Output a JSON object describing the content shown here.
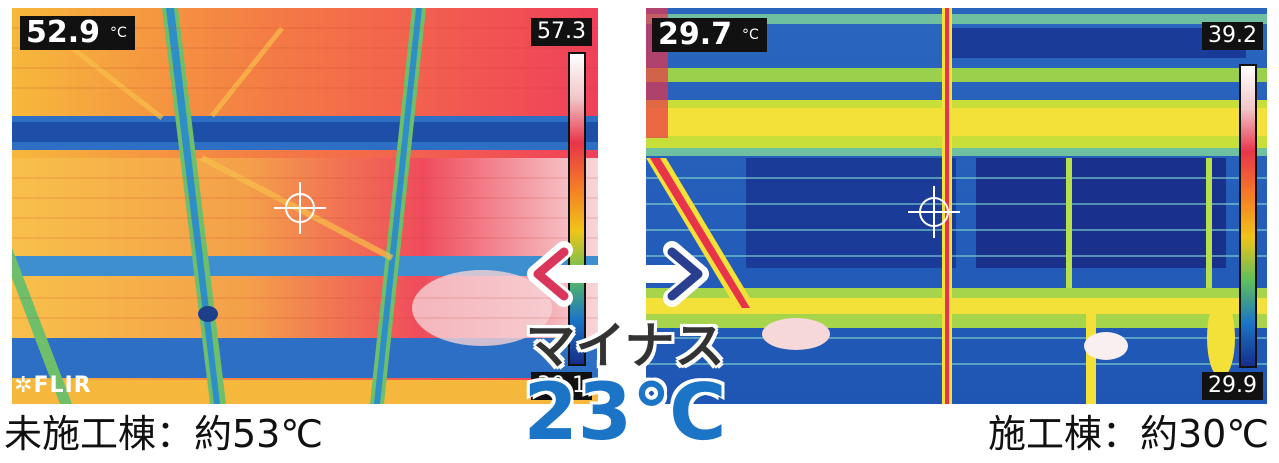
{
  "left_panel": {
    "spot_temp": "52.9",
    "unit": "°C",
    "scale_max": "57.3",
    "scale_min": "30.1",
    "logo": "FLIR",
    "caption": "未施工棟：約53℃"
  },
  "right_panel": {
    "spot_temp": "29.7",
    "unit": "°C",
    "scale_max": "39.2",
    "scale_min": "29.9",
    "caption": "施工棟：約30℃"
  },
  "comparison": {
    "label": "マイナス",
    "value": "23℃"
  },
  "colors": {
    "hot": "#e8344a",
    "cool": "#1b74c6",
    "arrow_left": "#d9365a",
    "arrow_right": "#2a3f8f"
  }
}
